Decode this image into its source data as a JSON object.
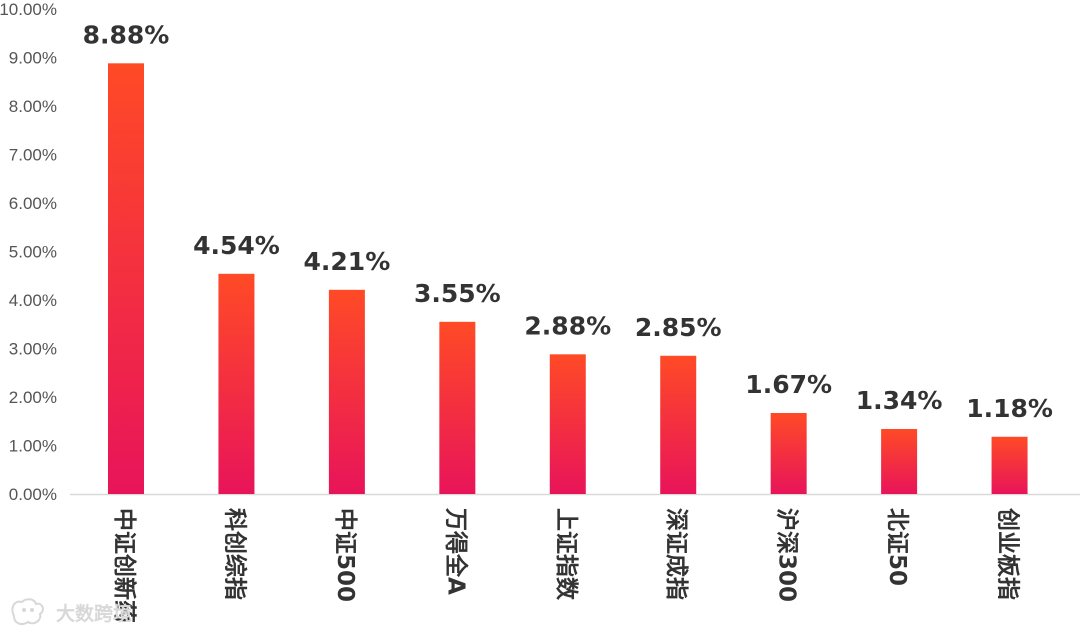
{
  "chart_data": {
    "type": "bar",
    "title": "",
    "xlabel": "",
    "ylabel": "",
    "categories": [
      "中证创新药",
      "科创综指",
      "中证500",
      "万得全A",
      "上证指数",
      "深证成指",
      "沪深300",
      "北证50",
      "创业板指"
    ],
    "values": [
      8.88,
      4.54,
      4.21,
      3.55,
      2.88,
      2.85,
      1.67,
      1.34,
      1.18
    ],
    "data_labels": [
      "8.88%",
      "4.54%",
      "4.21%",
      "3.55%",
      "2.88%",
      "2.85%",
      "1.67%",
      "1.34%",
      "1.18%"
    ],
    "ylim": [
      0,
      10
    ],
    "yticks": [
      0,
      1,
      2,
      3,
      4,
      5,
      6,
      7,
      8,
      9,
      10
    ],
    "ytick_labels": [
      "0.00%",
      "1.00%",
      "2.00%",
      "3.00%",
      "4.00%",
      "5.00%",
      "6.00%",
      "7.00%",
      "8.00%",
      "9.00%",
      "10.00%"
    ],
    "grid": false,
    "legend": "none",
    "colors": {
      "bar_top": "#ff4a26",
      "bar_bottom": "#e8145a",
      "axis": "#d9d9d9",
      "tick_text": "#555555",
      "label_text": "#333333"
    }
  },
  "watermark": {
    "text": "大数跨境",
    "icon": "cat-logo-icon"
  }
}
